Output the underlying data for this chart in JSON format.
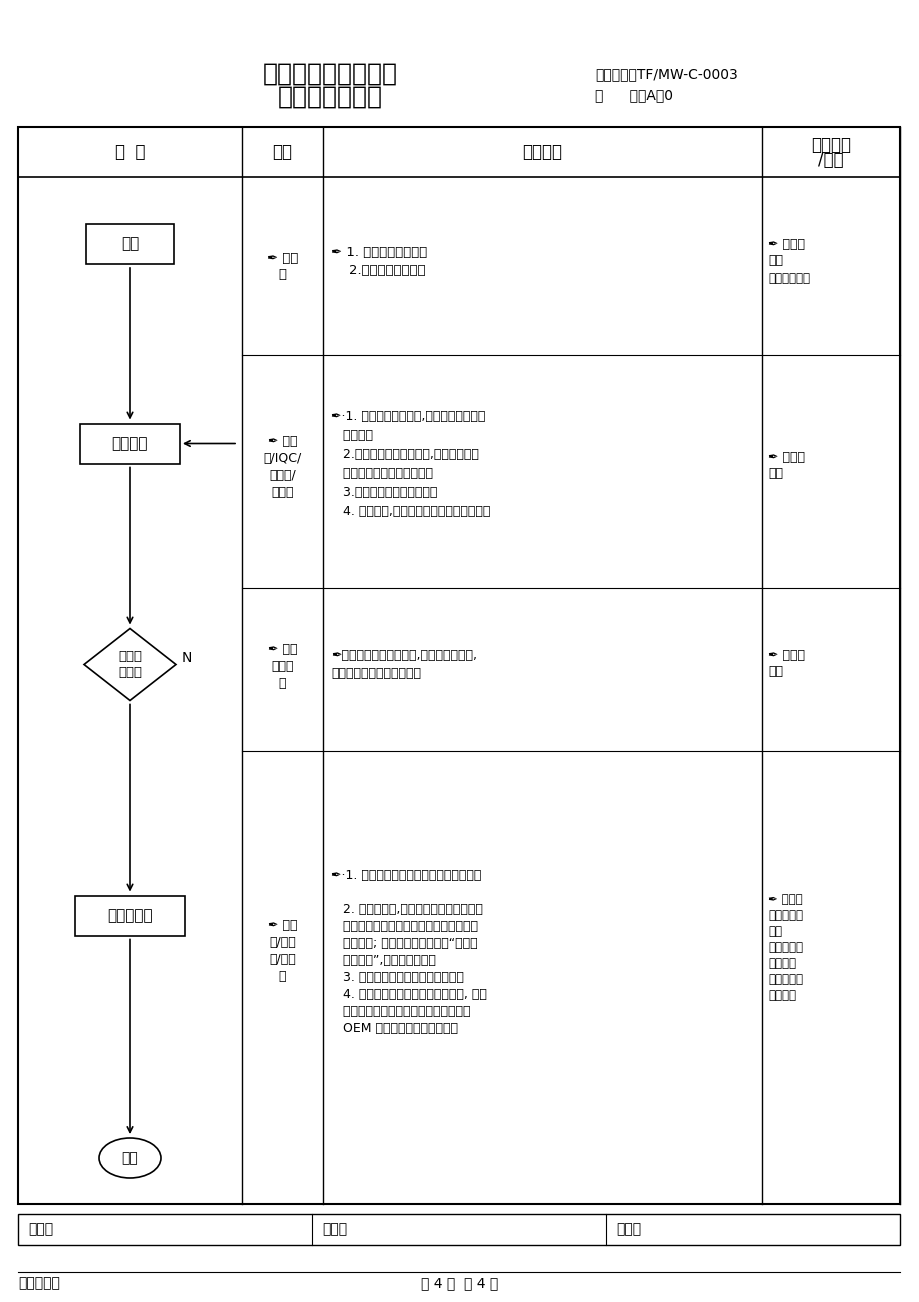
{
  "title_line1": "物料收、发、储存、",
  "title_line2": "防护的管理流程",
  "doc_number": "文件编号：TF/MW-C-0003",
  "doc_version": "版      次：A／0",
  "col0_header": "流  程",
  "col1_header": "职责",
  "col2_header": "工作要求",
  "col3_header_1": "相关文件",
  "col3_header_2": "/记录",
  "footer_compiled": "编制：",
  "footer_reviewed": "审核：",
  "footer_approved": "批准：",
  "footer_date": "生效日期：",
  "footer_page": "第 4 页  共 4 页",
  "bg_color": "#ffffff",
  "border_color": "#000000"
}
